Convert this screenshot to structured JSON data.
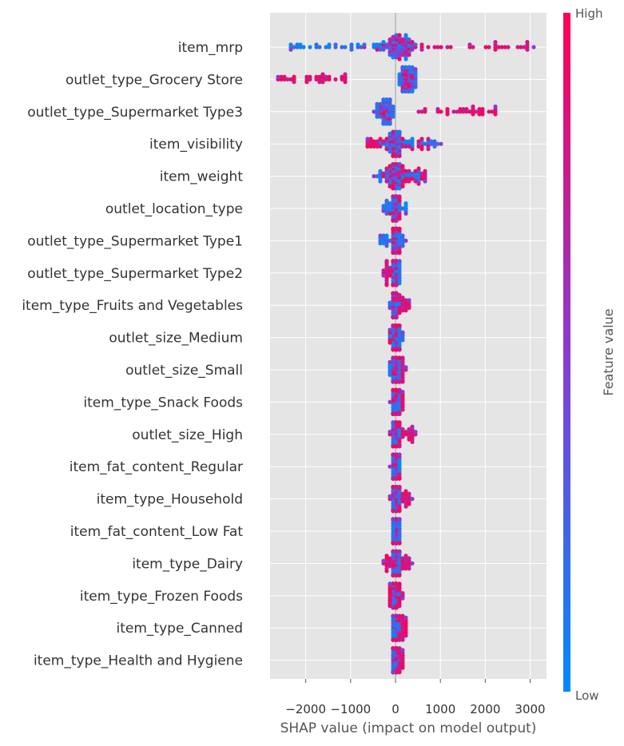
{
  "chart_data": {
    "type": "scatter",
    "subtype": "shap-beeswarm",
    "title": "",
    "xlabel": "SHAP value (impact on model output)",
    "ylabel": "",
    "xlim": [
      -2800,
      3300
    ],
    "xticks": [
      -2000,
      -1000,
      0,
      1000,
      2000,
      3000
    ],
    "xtick_labels": [
      "−2000",
      "−1000",
      "0",
      "1000",
      "2000",
      "3000"
    ],
    "grid": true,
    "colorbar": {
      "label": "Feature value",
      "high_label": "High",
      "low_label": "Low",
      "low_color": "#008bfb",
      "mid_color": "#8a3bd1",
      "high_color": "#ff0052"
    },
    "colors": {
      "background": "#e5e5e5",
      "grid": "#ffffff",
      "zero_line": "#a0a0a0",
      "text": "#333333",
      "axis_label": "#555555"
    },
    "features": [
      {
        "name": "item_mrp",
        "spread": {
          "min": -2350,
          "max": 3100,
          "lowMin": -2350,
          "lowMax": 500,
          "highMin": -400,
          "highMax": 3100,
          "core": 900,
          "coreCenter": 0
        }
      },
      {
        "name": "outlet_type_Grocery Store",
        "spread": {
          "min": -2600,
          "max": 450,
          "lowMin": 100,
          "lowMax": 450,
          "highMin": -2600,
          "highMax": -1050,
          "core": 250,
          "coreCenter": 250
        }
      },
      {
        "name": "outlet_type_Supermarket Type3",
        "spread": {
          "min": -450,
          "max": 2250,
          "lowMin": -450,
          "lowMax": -50,
          "highMin": 500,
          "highMax": 2250,
          "core": 250,
          "coreCenter": -200
        }
      },
      {
        "name": "item_visibility",
        "spread": {
          "min": -650,
          "max": 1000,
          "lowMin": -350,
          "lowMax": 1000,
          "highMin": -650,
          "highMax": 750,
          "core": 250,
          "coreCenter": 0
        }
      },
      {
        "name": "item_weight",
        "spread": {
          "min": -450,
          "max": 650,
          "lowMin": -450,
          "lowMax": 550,
          "highMin": -300,
          "highMax": 650,
          "core": 200,
          "coreCenter": 0
        }
      },
      {
        "name": "outlet_location_type",
        "spread": {
          "min": -250,
          "max": 250,
          "lowMin": -250,
          "lowMax": 250,
          "highMin": -100,
          "highMax": 100,
          "core": 60,
          "coreCenter": 0
        }
      },
      {
        "name": "outlet_type_Supermarket Type1",
        "spread": {
          "min": -350,
          "max": 200,
          "lowMin": -350,
          "lowMax": 200,
          "highMin": -40,
          "highMax": 80,
          "core": 50,
          "coreCenter": 0
        }
      },
      {
        "name": "outlet_type_Supermarket Type2",
        "spread": {
          "min": -250,
          "max": 100,
          "lowMin": -50,
          "lowMax": 100,
          "highMin": -250,
          "highMax": 50,
          "core": 50,
          "coreCenter": 0
        }
      },
      {
        "name": "item_type_Fruits and Vegetables",
        "spread": {
          "min": -150,
          "max": 300,
          "lowMin": -100,
          "lowMax": 80,
          "highMin": -100,
          "highMax": 300,
          "core": 50,
          "coreCenter": 0
        }
      },
      {
        "name": "outlet_size_Medium",
        "spread": {
          "min": -100,
          "max": 150,
          "lowMin": -100,
          "lowMax": 150,
          "highMin": -100,
          "highMax": 100,
          "core": 40,
          "coreCenter": 0
        }
      },
      {
        "name": "outlet_size_Small",
        "spread": {
          "min": -100,
          "max": 200,
          "lowMin": -100,
          "lowMax": 100,
          "highMin": -50,
          "highMax": 200,
          "core": 40,
          "coreCenter": 0
        }
      },
      {
        "name": "item_type_Snack Foods",
        "spread": {
          "min": -100,
          "max": 150,
          "lowMin": -80,
          "lowMax": 80,
          "highMin": -100,
          "highMax": 150,
          "core": 40,
          "coreCenter": 0
        }
      },
      {
        "name": "outlet_size_High",
        "spread": {
          "min": -150,
          "max": 450,
          "lowMin": -80,
          "lowMax": 80,
          "highMin": -150,
          "highMax": 450,
          "core": 40,
          "coreCenter": 0
        }
      },
      {
        "name": "item_fat_content_Regular",
        "spread": {
          "min": -100,
          "max": 100,
          "lowMin": -80,
          "lowMax": 80,
          "highMin": -50,
          "highMax": 100,
          "core": 40,
          "coreCenter": 0
        }
      },
      {
        "name": "item_type_Household",
        "spread": {
          "min": -150,
          "max": 350,
          "lowMin": -80,
          "lowMax": 80,
          "highMin": -150,
          "highMax": 350,
          "core": 40,
          "coreCenter": 0
        }
      },
      {
        "name": "item_fat_content_Low Fat",
        "spread": {
          "min": -80,
          "max": 100,
          "lowMin": -80,
          "lowMax": 100,
          "highMin": -60,
          "highMax": 60,
          "core": 40,
          "coreCenter": 0
        }
      },
      {
        "name": "item_type_Dairy",
        "spread": {
          "min": -250,
          "max": 350,
          "lowMin": -80,
          "lowMax": 80,
          "highMin": -250,
          "highMax": 350,
          "core": 40,
          "coreCenter": 0
        }
      },
      {
        "name": "item_type_Frozen Foods",
        "spread": {
          "min": -150,
          "max": 150,
          "lowMin": -80,
          "lowMax": 80,
          "highMin": -150,
          "highMax": 150,
          "core": 40,
          "coreCenter": 0
        }
      },
      {
        "name": "item_type_Canned",
        "spread": {
          "min": -80,
          "max": 250,
          "lowMin": -80,
          "lowMax": 80,
          "highMin": -50,
          "highMax": 250,
          "core": 40,
          "coreCenter": 0
        }
      },
      {
        "name": "item_type_Health and Hygiene",
        "spread": {
          "min": -80,
          "max": 150,
          "lowMin": -80,
          "lowMax": 80,
          "highMin": -50,
          "highMax": 150,
          "core": 40,
          "coreCenter": 0
        }
      }
    ]
  }
}
